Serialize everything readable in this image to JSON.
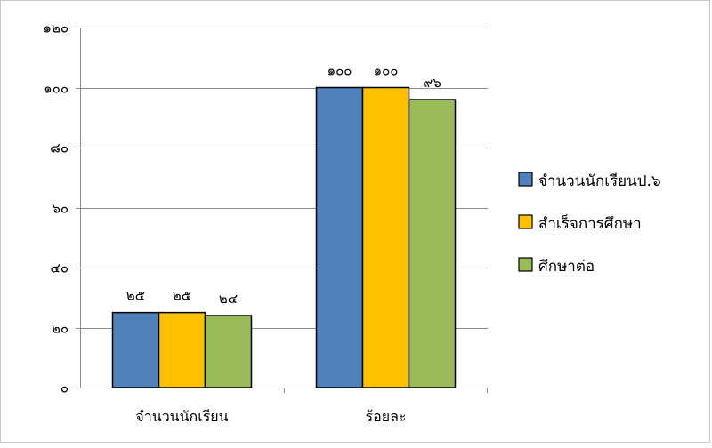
{
  "chart_data": {
    "type": "bar",
    "categories": [
      "จำนวนนักเรียน",
      "ร้อยละ"
    ],
    "series": [
      {
        "name": "จำนวนนักเรียนป.๖",
        "values": [
          25,
          100
        ],
        "value_labels": [
          "๒๕",
          "๑๐๐"
        ],
        "color": "#4f81bd"
      },
      {
        "name": "สำเร็จการศึกษา",
        "values": [
          25,
          100
        ],
        "value_labels": [
          "๒๕",
          "๑๐๐"
        ],
        "color": "#ffc000"
      },
      {
        "name": "ศึกษาต่อ",
        "values": [
          24,
          96
        ],
        "value_labels": [
          "๒๔",
          "๙๖"
        ],
        "color": "#9bbb59"
      }
    ],
    "ylim": [
      0,
      120
    ],
    "y_ticks": [
      0,
      20,
      40,
      60,
      80,
      100,
      120
    ],
    "y_tick_labels": [
      "๐",
      "๒๐",
      "๔๐",
      "๖๐",
      "๘๐",
      "๑๐๐",
      "๑๒๐"
    ],
    "grid": true,
    "legend": "right"
  }
}
